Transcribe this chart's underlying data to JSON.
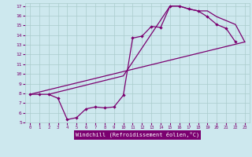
{
  "bg_color": "#cde8ee",
  "grid_color": "#aacccc",
  "line_color": "#7b0070",
  "xlim": [
    -0.5,
    23.5
  ],
  "ylim": [
    5,
    17.3
  ],
  "xticks": [
    0,
    1,
    2,
    3,
    4,
    5,
    6,
    7,
    8,
    9,
    10,
    11,
    12,
    13,
    14,
    15,
    16,
    17,
    18,
    19,
    20,
    21,
    22,
    23
  ],
  "yticks": [
    5,
    6,
    7,
    8,
    9,
    10,
    11,
    12,
    13,
    14,
    15,
    16,
    17
  ],
  "xlabel": "Windchill (Refroidissement éolien,°C)",
  "line1_x": [
    0,
    1,
    2,
    3,
    4,
    5,
    6,
    7,
    8,
    9,
    10,
    11,
    12,
    13,
    14,
    15,
    16,
    17,
    18,
    19,
    20,
    21,
    22
  ],
  "line1_y": [
    7.9,
    7.9,
    7.9,
    7.5,
    5.3,
    5.5,
    6.4,
    6.6,
    6.5,
    6.6,
    7.8,
    13.7,
    13.9,
    14.9,
    14.8,
    17.0,
    17.0,
    16.7,
    16.5,
    15.9,
    15.1,
    14.7,
    13.3
  ],
  "line2_x": [
    0,
    23
  ],
  "line2_y": [
    7.9,
    13.3
  ],
  "line3_x": [
    2,
    10,
    15,
    16,
    17,
    18,
    19,
    20,
    22,
    23
  ],
  "line3_y": [
    7.9,
    9.8,
    17.0,
    17.0,
    16.7,
    16.5,
    16.5,
    15.9,
    15.1,
    13.3
  ]
}
